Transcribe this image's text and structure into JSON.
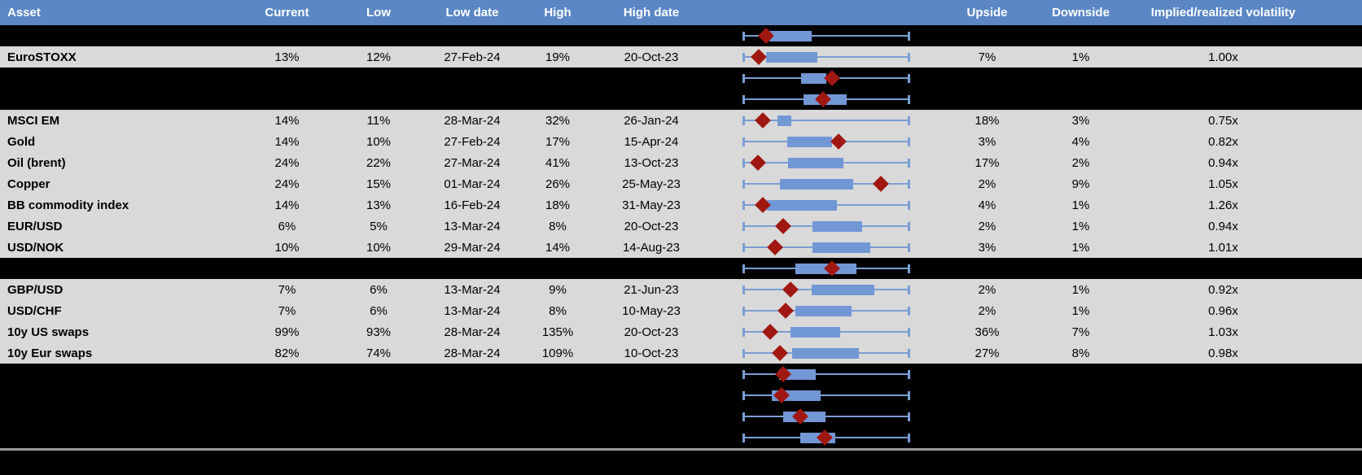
{
  "header": {
    "columns": [
      "Asset",
      "Current",
      "Low",
      "Low date",
      "High",
      "High date",
      "Upside",
      "Downside",
      "Implied/realized volatility"
    ]
  },
  "colors": {
    "header_bg": "#5b87c5",
    "header_text": "#ffffff",
    "row_bg": "#d9d9d9",
    "spacer_bg": "#000000",
    "text": "#000000",
    "whisker": "#7a9ed4",
    "box": "#7297d5",
    "marker": "#a01811",
    "separator": "#999999"
  },
  "chart_data": {
    "type": "table",
    "note": "Each row has a min-max whisker spanning the full track (0-100%), a blue box and a dark red diamond marker; box_start_pct/box_end_pct/marker_pct are positions along the whisker."
  },
  "rows": [
    {
      "type": "spacer",
      "plot": {
        "box_start_pct": 15.7,
        "box_end_pct": 41.0,
        "marker_pct": 13.7
      }
    },
    {
      "type": "data",
      "asset": "EuroSTOXX",
      "current": "13%",
      "low": "12%",
      "low_date": "27-Feb-24",
      "high": "19%",
      "high_date": "20-Oct-23",
      "upside": "7%",
      "downside": "1%",
      "implied_realized": "1.00x",
      "plot": {
        "box_start_pct": 13.7,
        "box_end_pct": 44.6,
        "marker_pct": 9.5
      }
    },
    {
      "type": "spacer",
      "plot": {
        "box_start_pct": 34.8,
        "box_end_pct": 50.0,
        "marker_pct": 53.3
      }
    },
    {
      "type": "spacer",
      "plot": {
        "box_start_pct": 36.1,
        "box_end_pct": 62.3,
        "marker_pct": 47.9
      }
    },
    {
      "type": "data",
      "asset": "MSCI EM",
      "current": "14%",
      "low": "11%",
      "low_date": "28-Mar-24",
      "high": "32%",
      "high_date": "26-Jan-24",
      "upside": "18%",
      "downside": "3%",
      "implied_realized": "0.75x",
      "plot": {
        "box_start_pct": 20.6,
        "box_end_pct": 29.1,
        "marker_pct": 11.9
      }
    },
    {
      "type": "data",
      "asset": "Gold",
      "current": "14%",
      "low": "10%",
      "low_date": "27-Feb-24",
      "high": "17%",
      "high_date": "15-Apr-24",
      "upside": "3%",
      "downside": "4%",
      "implied_realized": "0.82x",
      "plot": {
        "box_start_pct": 26.3,
        "box_end_pct": 53.6,
        "marker_pct": 57.4
      }
    },
    {
      "type": "data",
      "asset": "Oil (brent)",
      "current": "24%",
      "low": "22%",
      "low_date": "27-Mar-24",
      "high": "41%",
      "high_date": "13-Oct-23",
      "upside": "17%",
      "downside": "2%",
      "implied_realized": "0.94x",
      "plot": {
        "box_start_pct": 26.8,
        "box_end_pct": 60.3,
        "marker_pct": 8.7
      }
    },
    {
      "type": "data",
      "asset": "Copper",
      "current": "24%",
      "low": "15%",
      "low_date": "01-Mar-24",
      "high": "26%",
      "high_date": "25-May-23",
      "upside": "2%",
      "downside": "9%",
      "implied_realized": "1.05x",
      "plot": {
        "box_start_pct": 22.2,
        "box_end_pct": 66.0,
        "marker_pct": 82.7
      }
    },
    {
      "type": "data",
      "asset": "BB commodity index",
      "current": "14%",
      "low": "13%",
      "low_date": "16-Feb-24",
      "high": "18%",
      "high_date": "31-May-23",
      "upside": "4%",
      "downside": "1%",
      "implied_realized": "1.26x",
      "plot": {
        "box_start_pct": 14.1,
        "box_end_pct": 56.2,
        "marker_pct": 11.6
      }
    },
    {
      "type": "data",
      "asset": "EUR/USD",
      "current": "6%",
      "low": "5%",
      "low_date": "13-Mar-24",
      "high": "8%",
      "high_date": "20-Oct-23",
      "upside": "2%",
      "downside": "1%",
      "implied_realized": "0.94x",
      "plot": {
        "box_start_pct": 41.5,
        "box_end_pct": 71.7,
        "marker_pct": 23.9
      }
    },
    {
      "type": "data",
      "asset": "USD/NOK",
      "current": "10%",
      "low": "10%",
      "low_date": "29-Mar-24",
      "high": "14%",
      "high_date": "14-Aug-23",
      "upside": "3%",
      "downside": "1%",
      "implied_realized": "1.01x",
      "plot": {
        "box_start_pct": 41.5,
        "box_end_pct": 76.5,
        "marker_pct": 19.0
      }
    },
    {
      "type": "spacer",
      "plot": {
        "box_start_pct": 31.2,
        "box_end_pct": 68.0,
        "marker_pct": 53.3
      }
    },
    {
      "type": "data",
      "asset": "GBP/USD",
      "current": "7%",
      "low": "6%",
      "low_date": "13-Mar-24",
      "high": "9%",
      "high_date": "21-Jun-23",
      "upside": "2%",
      "downside": "1%",
      "implied_realized": "0.92x",
      "plot": {
        "box_start_pct": 41.0,
        "box_end_pct": 78.9,
        "marker_pct": 28.3
      }
    },
    {
      "type": "data",
      "asset": "USD/CHF",
      "current": "7%",
      "low": "6%",
      "low_date": "13-Mar-24",
      "high": "8%",
      "high_date": "10-May-23",
      "upside": "2%",
      "downside": "1%",
      "implied_realized": "0.96x",
      "plot": {
        "box_start_pct": 31.2,
        "box_end_pct": 65.2,
        "marker_pct": 25.5
      }
    },
    {
      "type": "data",
      "asset": "10y US swaps",
      "current": "99%",
      "low": "93%",
      "low_date": "28-Mar-24",
      "high": "135%",
      "high_date": "20-Oct-23",
      "upside": "36%",
      "downside": "7%",
      "implied_realized": "1.03x",
      "plot": {
        "box_start_pct": 28.4,
        "box_end_pct": 58.5,
        "marker_pct": 16.0
      }
    },
    {
      "type": "data",
      "asset": "10y Eur swaps",
      "current": "82%",
      "low": "74%",
      "low_date": "28-Mar-24",
      "high": "109%",
      "high_date": "10-Oct-23",
      "upside": "27%",
      "downside": "8%",
      "implied_realized": "0.98x",
      "plot": {
        "box_start_pct": 29.3,
        "box_end_pct": 69.6,
        "marker_pct": 22.2
      }
    },
    {
      "type": "spacer",
      "plot": {
        "box_start_pct": 21.4,
        "box_end_pct": 43.5,
        "marker_pct": 24.2
      }
    },
    {
      "type": "spacer",
      "plot": {
        "box_start_pct": 17.3,
        "box_end_pct": 46.4,
        "marker_pct": 23.0
      }
    },
    {
      "type": "spacer",
      "plot": {
        "box_start_pct": 23.9,
        "box_end_pct": 49.7,
        "marker_pct": 34.5
      }
    },
    {
      "type": "spacer",
      "plot": {
        "box_start_pct": 34.5,
        "box_end_pct": 55.4,
        "marker_pct": 49.2
      }
    }
  ]
}
